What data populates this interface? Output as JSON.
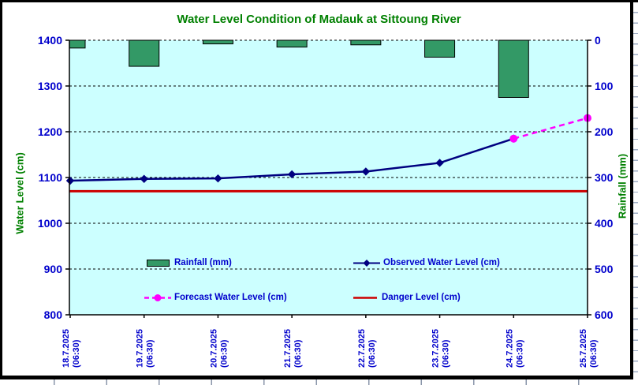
{
  "chart_data": {
    "type": "bar+line combo",
    "title": "Water Level Condition of Madauk at Sittoung River",
    "categories": [
      {
        "date": "18.7.2025",
        "time": "(06:30)"
      },
      {
        "date": "19.7.2025",
        "time": "(06:30)"
      },
      {
        "date": "20.7.2025",
        "time": "(06:30)"
      },
      {
        "date": "21.7.2025",
        "time": "(06:30)"
      },
      {
        "date": "22.7.2025",
        "time": "(06:30)"
      },
      {
        "date": "23.7.2025",
        "time": "(06:30)"
      },
      {
        "date": "24.7.2025",
        "time": "(06:30)"
      },
      {
        "date": "25.7.2025",
        "time": "(06:30)"
      }
    ],
    "series": [
      {
        "name": "Rainfall (mm)",
        "type": "bar",
        "axis": "right",
        "values": [
          17,
          57,
          8,
          15,
          10,
          37,
          125,
          0
        ]
      },
      {
        "name": "Observed Water Level (cm)",
        "type": "line",
        "marker": "diamond",
        "axis": "left",
        "values": [
          1093,
          1097,
          1098,
          1107,
          1113,
          1132,
          1185,
          null
        ]
      },
      {
        "name": "Forecast Water Level (cm)",
        "type": "line",
        "dashed": true,
        "marker": "circle",
        "axis": "left",
        "values": [
          null,
          null,
          null,
          null,
          null,
          null,
          1185,
          1230
        ]
      },
      {
        "name": "Danger Level (cm)",
        "type": "hline",
        "axis": "left",
        "value": 1070
      }
    ],
    "left_axis": {
      "title": "Water Level (cm)",
      "min": 800,
      "max": 1400,
      "step": 100
    },
    "right_axis": {
      "title": "Rainfall (mm)",
      "min": 0,
      "max": 600,
      "step": 100,
      "inverted_bars_hang_from_top": true
    },
    "grid": "horizontal dashed",
    "legend_position": "inside plot, lower half, two rows"
  },
  "colors": {
    "title_green": "#008000",
    "axis_label_blue": "#0000CC",
    "plot_background": "#CCFFFF",
    "bar_fill": "#339966",
    "bar_border": "#000000",
    "observed_line": "#000080",
    "forecast_line": "#FF00FF",
    "danger_line": "#CC0000",
    "gridline": "#000000",
    "axis_line": "#000000"
  }
}
